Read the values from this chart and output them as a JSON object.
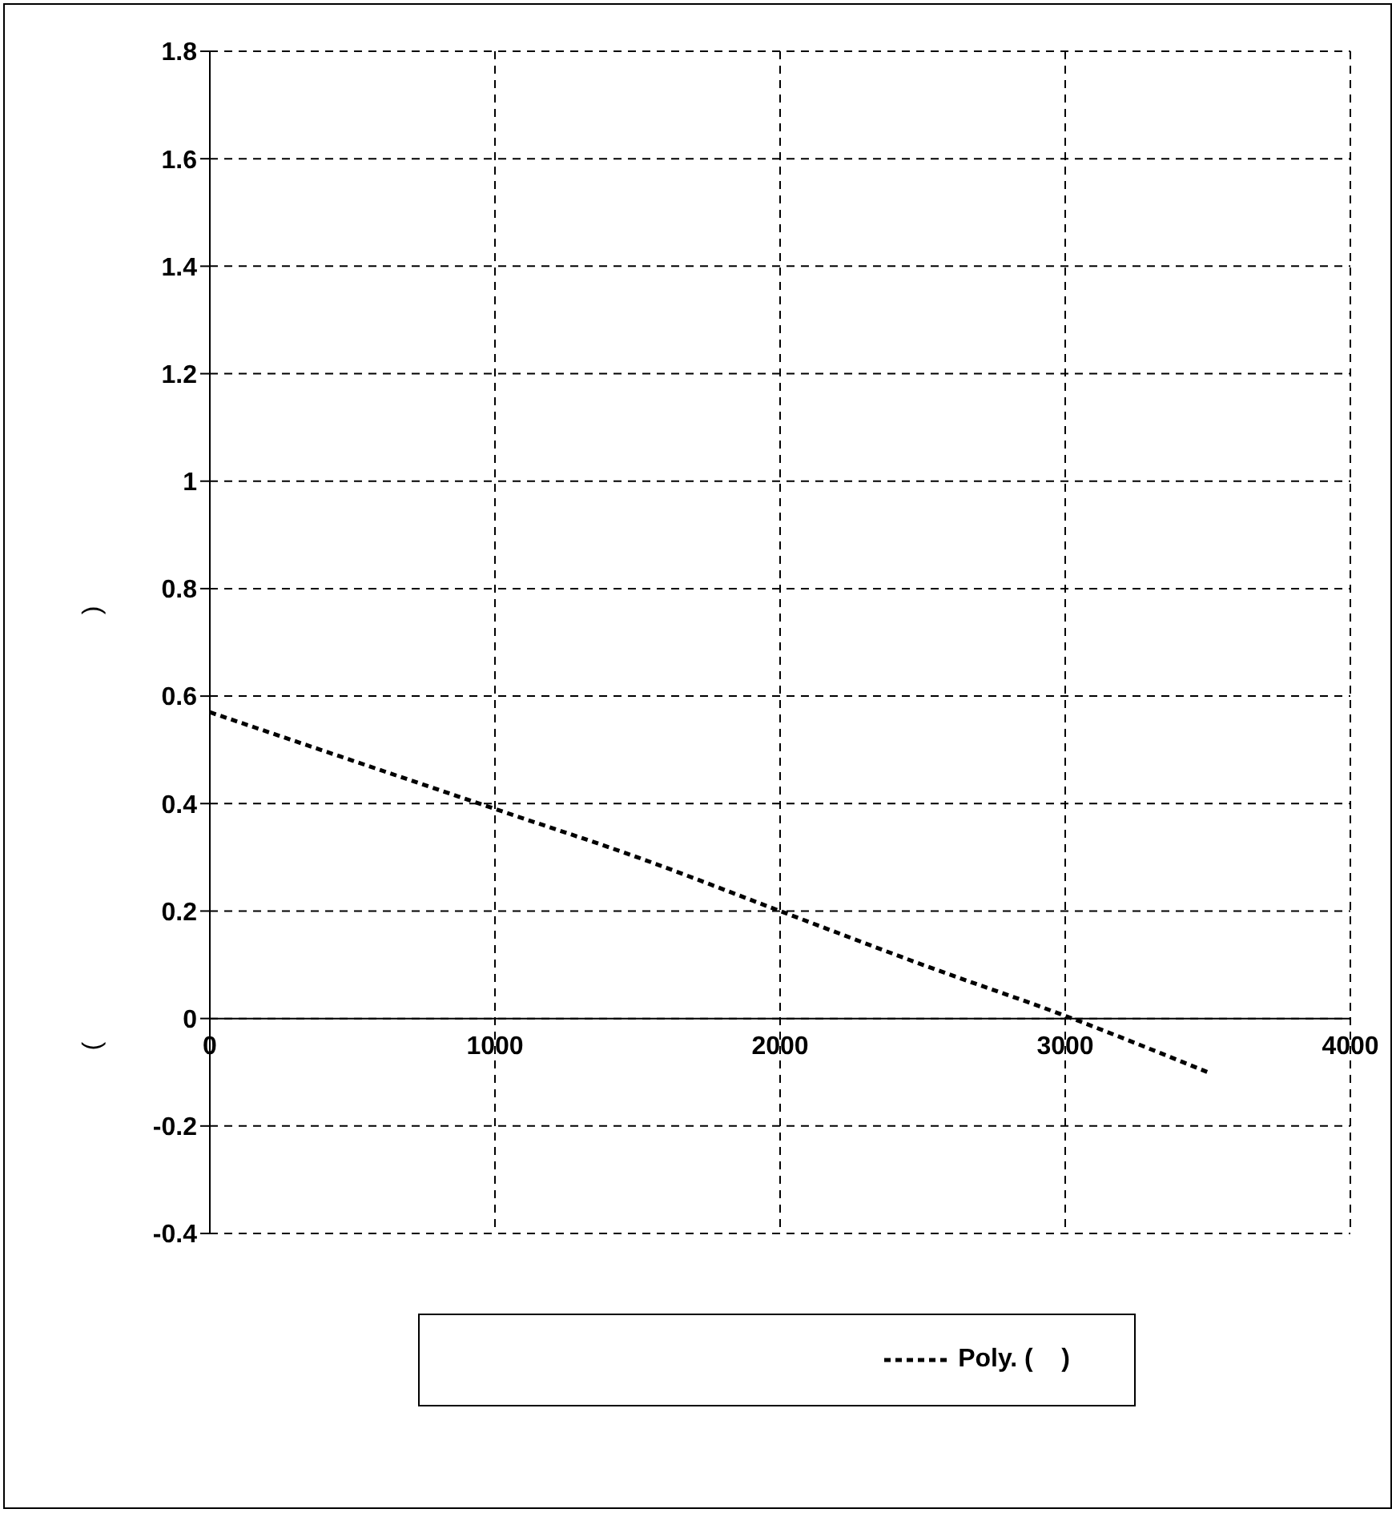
{
  "chart_data": {
    "type": "line",
    "ylabel": "(                                                            )",
    "x": [
      0,
      500,
      1000,
      1500,
      2000,
      2500,
      3000,
      3500
    ],
    "series": [
      {
        "name": "Poly. (    )",
        "color": "#000000",
        "values": [
          0.57,
          0.48,
          0.39,
          0.3,
          0.2,
          0.1,
          0.005,
          -0.1
        ]
      }
    ],
    "xlim": [
      0,
      4000
    ],
    "xticks": [
      0,
      1000,
      2000,
      3000,
      4000
    ],
    "ylim": [
      -0.4,
      1.8
    ],
    "yticks": [
      -0.4,
      -0.2,
      0,
      0.2,
      0.4,
      0.6,
      0.8,
      1,
      1.2,
      1.4,
      1.6,
      1.8
    ],
    "grid": true,
    "legend": "bottom",
    "line_style": "dashed",
    "marker": "none"
  }
}
